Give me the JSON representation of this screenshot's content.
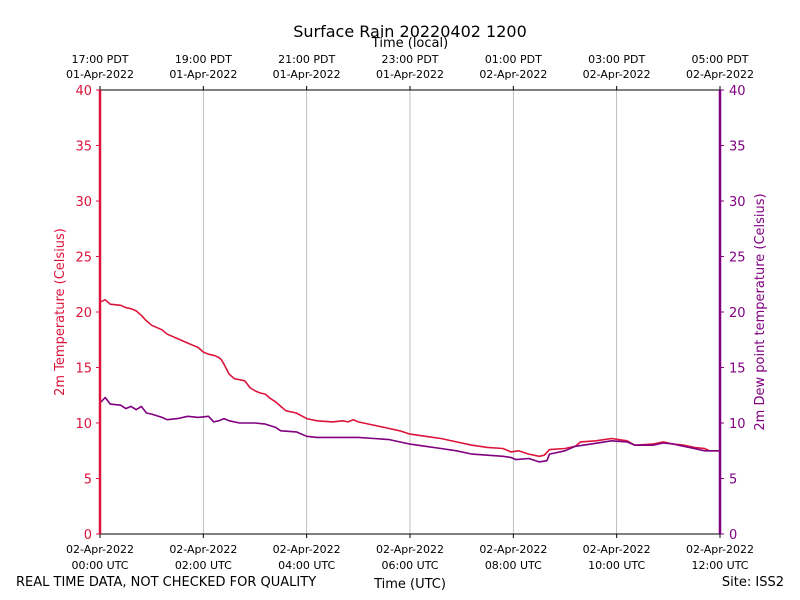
{
  "chart_data": {
    "type": "line",
    "title": "Surface Rain 20220402 1200",
    "top_axis_label": "Time (local)",
    "xlabel": "Time (UTC)",
    "ylabel_left": "2m Temperature (Celsius)",
    "ylabel_right": "2m Dew point temperature (Celsius)",
    "ylim": [
      0,
      40
    ],
    "yticks": [
      0,
      5,
      10,
      15,
      20,
      25,
      30,
      35,
      40
    ],
    "xlim_hours": [
      0,
      12
    ],
    "grid_x": true,
    "bottom_ticks": [
      {
        "h": 0,
        "line1": "02-Apr-2022",
        "line2": "00:00 UTC"
      },
      {
        "h": 2,
        "line1": "02-Apr-2022",
        "line2": "02:00 UTC"
      },
      {
        "h": 4,
        "line1": "02-Apr-2022",
        "line2": "04:00 UTC"
      },
      {
        "h": 6,
        "line1": "02-Apr-2022",
        "line2": "06:00 UTC"
      },
      {
        "h": 8,
        "line1": "02-Apr-2022",
        "line2": "08:00 UTC"
      },
      {
        "h": 10,
        "line1": "02-Apr-2022",
        "line2": "10:00 UTC"
      },
      {
        "h": 12,
        "line1": "02-Apr-2022",
        "line2": "12:00 UTC"
      }
    ],
    "top_ticks": [
      {
        "h": 0,
        "line1": "17:00 PDT",
        "line2": "01-Apr-2022"
      },
      {
        "h": 2,
        "line1": "19:00 PDT",
        "line2": "01-Apr-2022"
      },
      {
        "h": 4,
        "line1": "21:00 PDT",
        "line2": "01-Apr-2022"
      },
      {
        "h": 6,
        "line1": "23:00 PDT",
        "line2": "01-Apr-2022"
      },
      {
        "h": 8,
        "line1": "01:00 PDT",
        "line2": "02-Apr-2022"
      },
      {
        "h": 10,
        "line1": "03:00 PDT",
        "line2": "02-Apr-2022"
      },
      {
        "h": 12,
        "line1": "05:00 PDT",
        "line2": "02-Apr-2022"
      }
    ],
    "series": [
      {
        "name": "2m Temperature",
        "color": "#dc143c",
        "points": [
          [
            0,
            20.9
          ],
          [
            0.1,
            21.1
          ],
          [
            0.2,
            20.7
          ],
          [
            0.4,
            20.6
          ],
          [
            0.5,
            20.4
          ],
          [
            0.6,
            20.3
          ],
          [
            0.7,
            20.1
          ],
          [
            0.8,
            19.7
          ],
          [
            0.9,
            19.2
          ],
          [
            1.0,
            18.8
          ],
          [
            1.2,
            18.4
          ],
          [
            1.3,
            18.0
          ],
          [
            1.5,
            17.6
          ],
          [
            1.7,
            17.2
          ],
          [
            1.8,
            17.0
          ],
          [
            1.9,
            16.8
          ],
          [
            2.0,
            16.4
          ],
          [
            2.1,
            16.2
          ],
          [
            2.2,
            16.1
          ],
          [
            2.3,
            15.9
          ],
          [
            2.35,
            15.7
          ],
          [
            2.4,
            15.3
          ],
          [
            2.5,
            14.4
          ],
          [
            2.6,
            14.0
          ],
          [
            2.8,
            13.8
          ],
          [
            2.85,
            13.5
          ],
          [
            2.9,
            13.2
          ],
          [
            3.0,
            12.9
          ],
          [
            3.1,
            12.7
          ],
          [
            3.2,
            12.6
          ],
          [
            3.3,
            12.2
          ],
          [
            3.4,
            11.9
          ],
          [
            3.5,
            11.5
          ],
          [
            3.6,
            11.1
          ],
          [
            3.8,
            10.9
          ],
          [
            4.0,
            10.4
          ],
          [
            4.2,
            10.2
          ],
          [
            4.5,
            10.1
          ],
          [
            4.7,
            10.2
          ],
          [
            4.8,
            10.1
          ],
          [
            4.9,
            10.3
          ],
          [
            5.0,
            10.1
          ],
          [
            5.2,
            9.9
          ],
          [
            5.5,
            9.6
          ],
          [
            5.8,
            9.3
          ],
          [
            6.0,
            9.0
          ],
          [
            6.3,
            8.8
          ],
          [
            6.6,
            8.6
          ],
          [
            6.9,
            8.3
          ],
          [
            7.2,
            8.0
          ],
          [
            7.5,
            7.8
          ],
          [
            7.8,
            7.7
          ],
          [
            7.95,
            7.4
          ],
          [
            8.1,
            7.5
          ],
          [
            8.3,
            7.2
          ],
          [
            8.5,
            7.0
          ],
          [
            8.6,
            7.1
          ],
          [
            8.7,
            7.6
          ],
          [
            9.0,
            7.7
          ],
          [
            9.2,
            7.9
          ],
          [
            9.3,
            8.3
          ],
          [
            9.6,
            8.4
          ],
          [
            9.9,
            8.6
          ],
          [
            10.2,
            8.4
          ],
          [
            10.35,
            8.0
          ],
          [
            10.7,
            8.1
          ],
          [
            10.9,
            8.3
          ],
          [
            11.1,
            8.1
          ],
          [
            11.3,
            8.0
          ],
          [
            11.5,
            7.8
          ],
          [
            11.7,
            7.7
          ],
          [
            11.8,
            7.5
          ],
          [
            12.0,
            7.5
          ]
        ]
      },
      {
        "name": "2m Dew point temperature",
        "color": "#800080",
        "points": [
          [
            0,
            11.8
          ],
          [
            0.1,
            12.3
          ],
          [
            0.2,
            11.7
          ],
          [
            0.4,
            11.6
          ],
          [
            0.5,
            11.3
          ],
          [
            0.6,
            11.5
          ],
          [
            0.7,
            11.2
          ],
          [
            0.8,
            11.5
          ],
          [
            0.9,
            10.9
          ],
          [
            1.0,
            10.8
          ],
          [
            1.2,
            10.5
          ],
          [
            1.3,
            10.3
          ],
          [
            1.5,
            10.4
          ],
          [
            1.7,
            10.6
          ],
          [
            1.9,
            10.5
          ],
          [
            2.1,
            10.6
          ],
          [
            2.2,
            10.1
          ],
          [
            2.3,
            10.2
          ],
          [
            2.4,
            10.4
          ],
          [
            2.5,
            10.2
          ],
          [
            2.7,
            10.0
          ],
          [
            3.0,
            10.0
          ],
          [
            3.2,
            9.9
          ],
          [
            3.4,
            9.6
          ],
          [
            3.5,
            9.3
          ],
          [
            3.8,
            9.2
          ],
          [
            4.0,
            8.8
          ],
          [
            4.2,
            8.7
          ],
          [
            4.5,
            8.7
          ],
          [
            4.8,
            8.7
          ],
          [
            5.0,
            8.7
          ],
          [
            5.3,
            8.6
          ],
          [
            5.6,
            8.5
          ],
          [
            5.8,
            8.3
          ],
          [
            6.0,
            8.1
          ],
          [
            6.3,
            7.9
          ],
          [
            6.6,
            7.7
          ],
          [
            6.9,
            7.5
          ],
          [
            7.2,
            7.2
          ],
          [
            7.5,
            7.1
          ],
          [
            7.8,
            7.0
          ],
          [
            7.95,
            6.9
          ],
          [
            8.05,
            6.7
          ],
          [
            8.3,
            6.8
          ],
          [
            8.5,
            6.5
          ],
          [
            8.65,
            6.6
          ],
          [
            8.7,
            7.2
          ],
          [
            9.0,
            7.5
          ],
          [
            9.2,
            7.9
          ],
          [
            9.5,
            8.1
          ],
          [
            9.9,
            8.4
          ],
          [
            10.2,
            8.3
          ],
          [
            10.35,
            8.0
          ],
          [
            10.7,
            8.0
          ],
          [
            10.9,
            8.2
          ],
          [
            11.1,
            8.1
          ],
          [
            11.3,
            7.9
          ],
          [
            11.5,
            7.7
          ],
          [
            11.7,
            7.5
          ],
          [
            12.0,
            7.5
          ]
        ]
      }
    ]
  },
  "footer": {
    "quality_note": "REAL TIME DATA, NOT CHECKED FOR QUALITY",
    "site": "Site: ISS2"
  }
}
